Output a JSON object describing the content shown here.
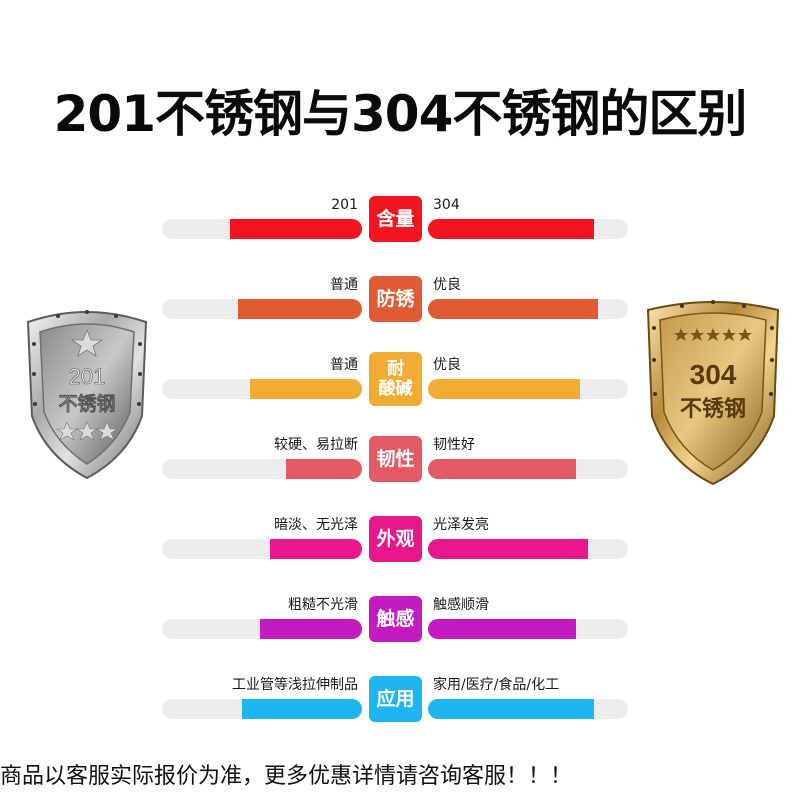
{
  "title": "201不锈钢与304不锈钢的区别",
  "shields": {
    "left": {
      "line1": "201",
      "line2": "不锈钢"
    },
    "right": {
      "line1": "304",
      "line2": "不锈钢"
    }
  },
  "rows": [
    {
      "badge": "含量",
      "left": "201",
      "right": "304",
      "color": "#f2141e",
      "left_level": 0.66,
      "right_level": 0.83
    },
    {
      "badge": "防锈",
      "left": "普通",
      "right": "优良",
      "color": "#e05a33",
      "left_level": 0.62,
      "right_level": 0.85
    },
    {
      "badge": "耐酸碱",
      "left": "普通",
      "right": "优良",
      "color": "#f3ac33",
      "left_level": 0.56,
      "right_level": 0.76
    },
    {
      "badge": "韧性",
      "left": "较硬、易拉断",
      "right": "韧性好",
      "color": "#e35a64",
      "left_level": 0.38,
      "right_level": 0.74
    },
    {
      "badge": "外观",
      "left": "暗淡、无光泽",
      "right": "光泽发亮",
      "color": "#e8178b",
      "left_level": 0.46,
      "right_level": 0.8
    },
    {
      "badge": "触感",
      "left": "粗糙不光滑",
      "right": "触感顺滑",
      "color": "#c41bc0",
      "left_level": 0.51,
      "right_level": 0.74
    },
    {
      "badge": "应用",
      "left": "工业管等浅拉伸制品",
      "right": "家用/医疗/食品/化工",
      "color": "#1eb5f0",
      "left_level": 0.6,
      "right_level": 0.83
    }
  ],
  "footer": "商品以客服实际报价为准，更多优惠详情请咨询客服！！！"
}
